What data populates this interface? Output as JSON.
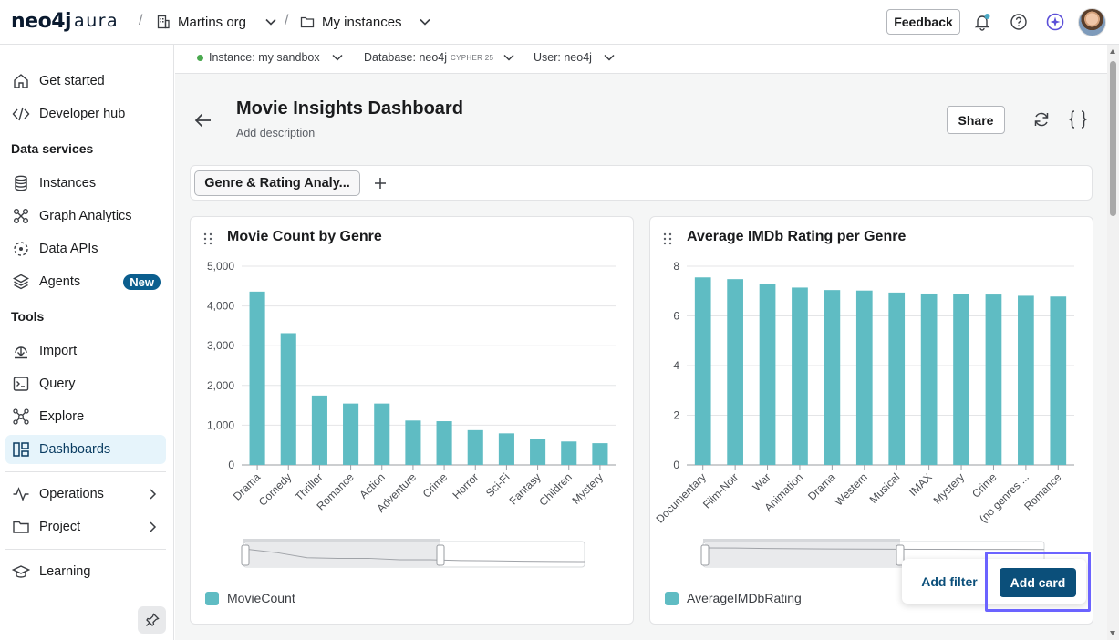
{
  "topbar": {
    "brand_main": "neo4j",
    "brand_sub": "aura",
    "org_label": "Martins org",
    "instances_label": "My instances",
    "feedback_label": "Feedback",
    "separator": "/"
  },
  "sidebar": {
    "items_top": [
      {
        "label": "Get started",
        "icon": "home-icon"
      },
      {
        "label": "Developer hub",
        "icon": "code-icon"
      }
    ],
    "section_data": "Data services",
    "items_data": [
      {
        "label": "Instances",
        "icon": "database-icon"
      },
      {
        "label": "Graph Analytics",
        "icon": "analytics-icon"
      },
      {
        "label": "Data APIs",
        "icon": "api-icon"
      },
      {
        "label": "Agents",
        "icon": "agents-icon",
        "badge": "New"
      }
    ],
    "section_tools": "Tools",
    "items_tools": [
      {
        "label": "Import",
        "icon": "import-icon"
      },
      {
        "label": "Query",
        "icon": "query-icon"
      },
      {
        "label": "Explore",
        "icon": "explore-icon"
      },
      {
        "label": "Dashboards",
        "icon": "dashboards-icon",
        "active": true
      }
    ],
    "items_bottom": [
      {
        "label": "Operations",
        "icon": "operations-icon"
      },
      {
        "label": "Project",
        "icon": "folder-icon"
      },
      {
        "label": "Learning",
        "icon": "learning-icon"
      }
    ]
  },
  "subbar": {
    "instance": "Instance: my sandbox",
    "database": "Database: neo4j",
    "cypher_tag": "CYPHER 25",
    "user": "User: neo4j"
  },
  "dashboard": {
    "title": "Movie Insights Dashboard",
    "description_placeholder": "Add description",
    "share_label": "Share",
    "tab_label": "Genre & Rating Analy..."
  },
  "actions": {
    "add_filter": "Add filter",
    "add_card": "Add card"
  },
  "colors": {
    "bar": "#5fbcc3",
    "accent": "#0b4f7a",
    "highlight": "#6b63ff"
  },
  "chart_data": [
    {
      "type": "bar",
      "title": "Movie Count by Genre",
      "categories": [
        "Drama",
        "Comedy",
        "Thriller",
        "Romance",
        "Action",
        "Adventure",
        "Crime",
        "Horror",
        "Sci-Fi",
        "Fantasy",
        "Children",
        "Mystery"
      ],
      "series": [
        {
          "name": "MovieCount",
          "values": [
            4361,
            3315,
            1746,
            1545,
            1545,
            1117,
            1100,
            875,
            795,
            650,
            590,
            548
          ]
        }
      ],
      "ylim": [
        0,
        5000
      ],
      "yticks": [
        "0",
        "1,000",
        "2,000",
        "3,000",
        "4,000",
        "5,000"
      ],
      "grid": true,
      "legend": "bottom-left"
    },
    {
      "type": "bar",
      "title": "Average IMDb Rating per Genre",
      "categories": [
        "Documentary",
        "Film-Noir",
        "War",
        "Animation",
        "Drama",
        "Western",
        "Musical",
        "IMAX",
        "Mystery",
        "Crime",
        "(no genres ...",
        "Romance"
      ],
      "series": [
        {
          "name": "AverageIMDbRating",
          "values": [
            7.55,
            7.48,
            7.3,
            7.14,
            7.04,
            7.02,
            6.94,
            6.9,
            6.88,
            6.86,
            6.81,
            6.78
          ]
        }
      ],
      "ylim": [
        0,
        8
      ],
      "yticks": [
        "0",
        "2",
        "4",
        "6",
        "8"
      ],
      "grid": true,
      "legend": "bottom-left"
    }
  ]
}
